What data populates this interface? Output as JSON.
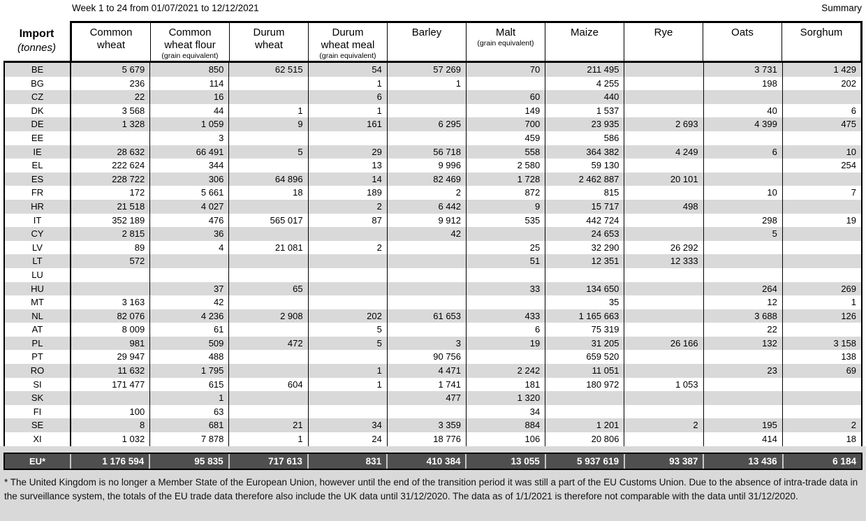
{
  "page": {
    "title_left": "Week 1 to 24 from 01/07/2021 to 12/12/2021",
    "title_right": "Summary"
  },
  "table": {
    "corner": {
      "label": "Import",
      "unit": "(tonnes)"
    },
    "columns": [
      {
        "name": "Common\nwheat",
        "sub": ""
      },
      {
        "name": "Common\nwheat flour",
        "sub": "(grain equivalent)"
      },
      {
        "name": "Durum\nwheat",
        "sub": ""
      },
      {
        "name": "Durum\nwheat meal",
        "sub": "(grain equivalent)"
      },
      {
        "name": "Barley",
        "sub": ""
      },
      {
        "name": "Malt",
        "sub": "(grain equivalent)"
      },
      {
        "name": "Maize",
        "sub": ""
      },
      {
        "name": "Rye",
        "sub": ""
      },
      {
        "name": "Oats",
        "sub": ""
      },
      {
        "name": "Sorghum",
        "sub": ""
      }
    ],
    "rows": [
      {
        "code": "BE",
        "values": [
          "5 679",
          "850",
          "62 515",
          "54",
          "57 269",
          "70",
          "211 495",
          "",
          "3 731",
          "1 429"
        ]
      },
      {
        "code": "BG",
        "values": [
          "236",
          "114",
          "",
          "1",
          "1",
          "",
          "4 255",
          "",
          "198",
          "202"
        ]
      },
      {
        "code": "CZ",
        "values": [
          "22",
          "16",
          "",
          "6",
          "",
          "60",
          "440",
          "",
          "",
          ""
        ]
      },
      {
        "code": "DK",
        "values": [
          "3 568",
          "44",
          "1",
          "1",
          "",
          "149",
          "1 537",
          "",
          "40",
          "6"
        ]
      },
      {
        "code": "DE",
        "values": [
          "1 328",
          "1 059",
          "9",
          "161",
          "6 295",
          "700",
          "23 935",
          "2 693",
          "4 399",
          "475"
        ]
      },
      {
        "code": "EE",
        "values": [
          "",
          "3",
          "",
          "",
          "",
          "459",
          "586",
          "",
          "",
          ""
        ]
      },
      {
        "code": "IE",
        "values": [
          "28 632",
          "66 491",
          "5",
          "29",
          "56 718",
          "558",
          "364 382",
          "4 249",
          "6",
          "10"
        ]
      },
      {
        "code": "EL",
        "values": [
          "222 624",
          "344",
          "",
          "13",
          "9 996",
          "2 580",
          "59 130",
          "",
          "",
          "254"
        ]
      },
      {
        "code": "ES",
        "values": [
          "228 722",
          "306",
          "64 896",
          "14",
          "82 469",
          "1 728",
          "2 462 887",
          "20 101",
          "",
          ""
        ]
      },
      {
        "code": "FR",
        "values": [
          "172",
          "5 661",
          "18",
          "189",
          "2",
          "872",
          "815",
          "",
          "10",
          "7"
        ]
      },
      {
        "code": "HR",
        "values": [
          "21 518",
          "4 027",
          "",
          "2",
          "6 442",
          "9",
          "15 717",
          "498",
          "",
          ""
        ]
      },
      {
        "code": "IT",
        "values": [
          "352 189",
          "476",
          "565 017",
          "87",
          "9 912",
          "535",
          "442 724",
          "",
          "298",
          "19"
        ]
      },
      {
        "code": "CY",
        "values": [
          "2 815",
          "36",
          "",
          "",
          "42",
          "",
          "24 653",
          "",
          "5",
          ""
        ]
      },
      {
        "code": "LV",
        "values": [
          "89",
          "4",
          "21 081",
          "2",
          "",
          "25",
          "32 290",
          "26 292",
          "",
          ""
        ]
      },
      {
        "code": "LT",
        "values": [
          "572",
          "",
          "",
          "",
          "",
          "51",
          "12 351",
          "12 333",
          "",
          ""
        ]
      },
      {
        "code": "LU",
        "values": [
          "",
          "",
          "",
          "",
          "",
          "",
          "",
          "",
          "",
          ""
        ]
      },
      {
        "code": "HU",
        "values": [
          "",
          "37",
          "65",
          "",
          "",
          "33",
          "134 650",
          "",
          "264",
          "269"
        ]
      },
      {
        "code": "MT",
        "values": [
          "3 163",
          "42",
          "",
          "",
          "",
          "",
          "35",
          "",
          "12",
          "1"
        ]
      },
      {
        "code": "NL",
        "values": [
          "82 076",
          "4 236",
          "2 908",
          "202",
          "61 653",
          "433",
          "1 165 663",
          "",
          "3 688",
          "126"
        ]
      },
      {
        "code": "AT",
        "values": [
          "8 009",
          "61",
          "",
          "5",
          "",
          "6",
          "75 319",
          "",
          "22",
          ""
        ]
      },
      {
        "code": "PL",
        "values": [
          "981",
          "509",
          "472",
          "5",
          "3",
          "19",
          "31 205",
          "26 166",
          "132",
          "3 158"
        ]
      },
      {
        "code": "PT",
        "values": [
          "29 947",
          "488",
          "",
          "",
          "90 756",
          "",
          "659 520",
          "",
          "",
          "138"
        ]
      },
      {
        "code": "RO",
        "values": [
          "11 632",
          "1 795",
          "",
          "1",
          "4 471",
          "2 242",
          "11 051",
          "",
          "23",
          "69"
        ]
      },
      {
        "code": "SI",
        "values": [
          "171 477",
          "615",
          "604",
          "1",
          "1 741",
          "181",
          "180 972",
          "1 053",
          "",
          ""
        ]
      },
      {
        "code": "SK",
        "values": [
          "",
          "1",
          "",
          "",
          "477",
          "1 320",
          "",
          "",
          "",
          ""
        ]
      },
      {
        "code": "FI",
        "values": [
          "100",
          "63",
          "",
          "",
          "",
          "34",
          "",
          "",
          "",
          ""
        ]
      },
      {
        "code": "SE",
        "values": [
          "8",
          "681",
          "21",
          "34",
          "3 359",
          "884",
          "1 201",
          "2",
          "195",
          "2"
        ]
      },
      {
        "code": "XI",
        "values": [
          "1 032",
          "7 878",
          "1",
          "24",
          "18 776",
          "106",
          "20 806",
          "",
          "414",
          "18"
        ]
      }
    ],
    "total": {
      "code": "EU*",
      "values": [
        "1 176 594",
        "95 835",
        "717 613",
        "831",
        "410 384",
        "13 055",
        "5 937 619",
        "93 387",
        "13 436",
        "6 184"
      ]
    }
  },
  "footnote": "* The United Kingdom is no longer a Member State of the European Union, however until the end of the transition period it was still a part of the EU Customs Union. Due to the absence of intra-trade data in the surveillance system, the totals of the EU trade data  therefore also include the UK data until 31/12/2020. The data as of 1/1/2021 is therefore not comparable with the data until 31/12/2020.",
  "colors": {
    "stripe": "#d9d9d9",
    "total_background": "#4f4f4f",
    "total_text": "#ffffff",
    "bottom_background": "#d9d9d9",
    "border": "#000000"
  }
}
